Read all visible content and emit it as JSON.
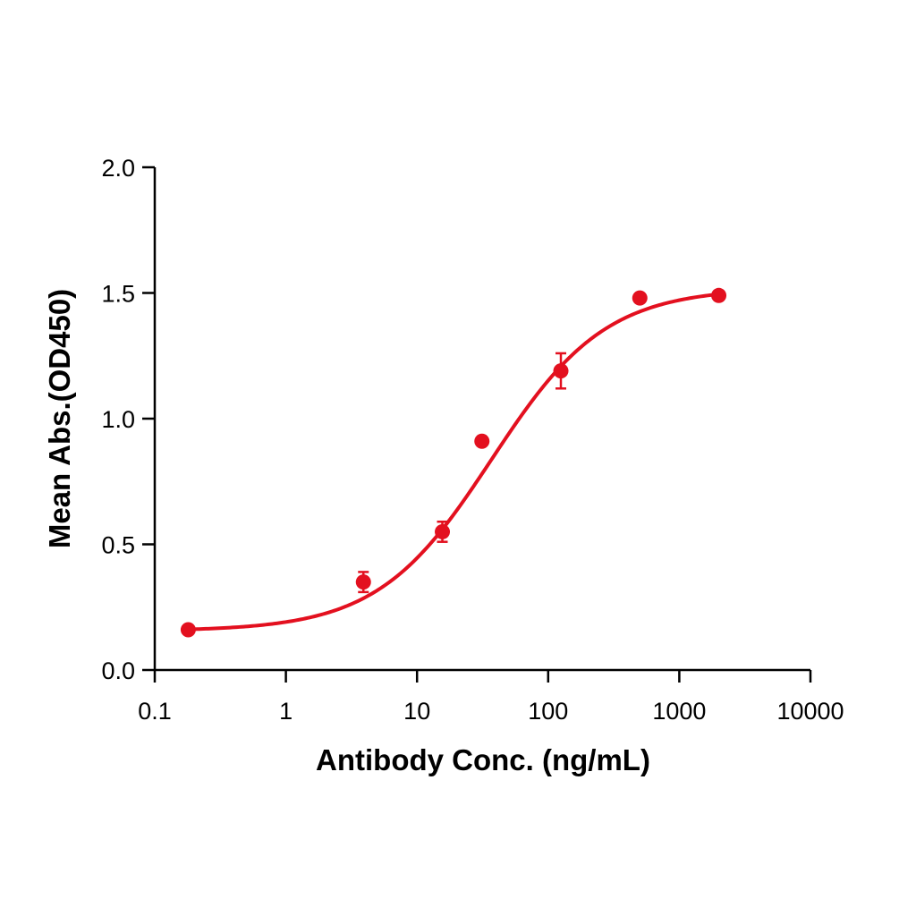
{
  "chart_data": {
    "type": "scatter",
    "xlabel": "Antibody Conc. (ng/mL)",
    "ylabel": "Mean Abs.(OD450)",
    "xscale": "log",
    "xlim": [
      0.1,
      10000
    ],
    "ylim": [
      0.0,
      2.0
    ],
    "x_ticks": [
      {
        "value": 0.1,
        "label": "0.1"
      },
      {
        "value": 1,
        "label": "1"
      },
      {
        "value": 10,
        "label": "10"
      },
      {
        "value": 100,
        "label": "100"
      },
      {
        "value": 1000,
        "label": "1000"
      },
      {
        "value": 10000,
        "label": "10000"
      }
    ],
    "y_ticks": [
      {
        "value": 0.0,
        "label": "0.0"
      },
      {
        "value": 0.5,
        "label": "0.5"
      },
      {
        "value": 1.0,
        "label": "1.0"
      },
      {
        "value": 1.5,
        "label": "1.5"
      },
      {
        "value": 2.0,
        "label": "2.0"
      }
    ],
    "grid": false,
    "color": "#e3101f",
    "points": [
      {
        "x": 0.18,
        "y": 0.16,
        "err": 0.005
      },
      {
        "x": 3.9,
        "y": 0.35,
        "err": 0.04
      },
      {
        "x": 15.6,
        "y": 0.55,
        "err": 0.04
      },
      {
        "x": 31.25,
        "y": 0.91,
        "err": 0.01
      },
      {
        "x": 125,
        "y": 1.19,
        "err": 0.07
      },
      {
        "x": 500,
        "y": 1.48,
        "err": 0.01
      },
      {
        "x": 2000,
        "y": 1.49,
        "err": 0.005
      }
    ],
    "fit": {
      "model": "4PL",
      "bottom": 0.155,
      "top": 1.52,
      "ec50": 37,
      "hill": 1.0,
      "x_range": [
        0.18,
        2000
      ]
    }
  }
}
